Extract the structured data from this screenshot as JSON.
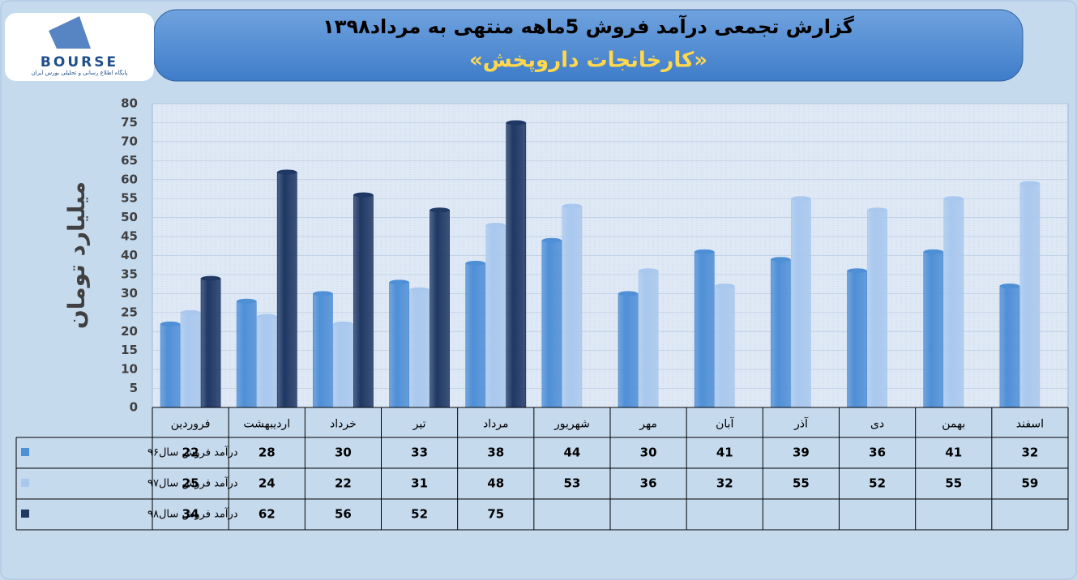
{
  "logo": {
    "name": "BOURSE",
    "tagline": "پایگاه اطلاع رسانی و تحلیلی بورس ایران"
  },
  "chart_data": {
    "type": "bar",
    "title": "گزارش تجمعی درآمد فروش 5ماهه منتهی به مرداد۱۳۹۸",
    "subtitle": "«کارخانجات داروپخش»",
    "y_label": "میلیارد تومان",
    "categories": [
      "فروردین",
      "اردیبهشت",
      "خرداد",
      "تیر",
      "مرداد",
      "شهریور",
      "مهر",
      "آبان",
      "آذر",
      "دی",
      "بهمن",
      "اسفند"
    ],
    "series": [
      {
        "name": "درآمد فروش سال۹۶",
        "color": "#4f8fd6",
        "values": [
          22,
          28,
          30,
          33,
          38,
          44,
          30,
          41,
          39,
          36,
          41,
          32
        ]
      },
      {
        "name": "درآمد فروش سال۹۷",
        "color": "#a9c8ee",
        "values": [
          25,
          24,
          22,
          31,
          48,
          53,
          36,
          32,
          55,
          52,
          55,
          59
        ]
      },
      {
        "name": "درآمد فروش سال۹۸",
        "color": "#1f3864",
        "values": [
          34,
          62,
          56,
          52,
          75,
          null,
          null,
          null,
          null,
          null,
          null,
          null
        ]
      }
    ],
    "ylim": [
      0,
      80
    ],
    "yticks": [
      0,
      5,
      10,
      15,
      20,
      25,
      30,
      35,
      40,
      45,
      50,
      55,
      60,
      65,
      70,
      75,
      80
    ],
    "grid": true
  }
}
